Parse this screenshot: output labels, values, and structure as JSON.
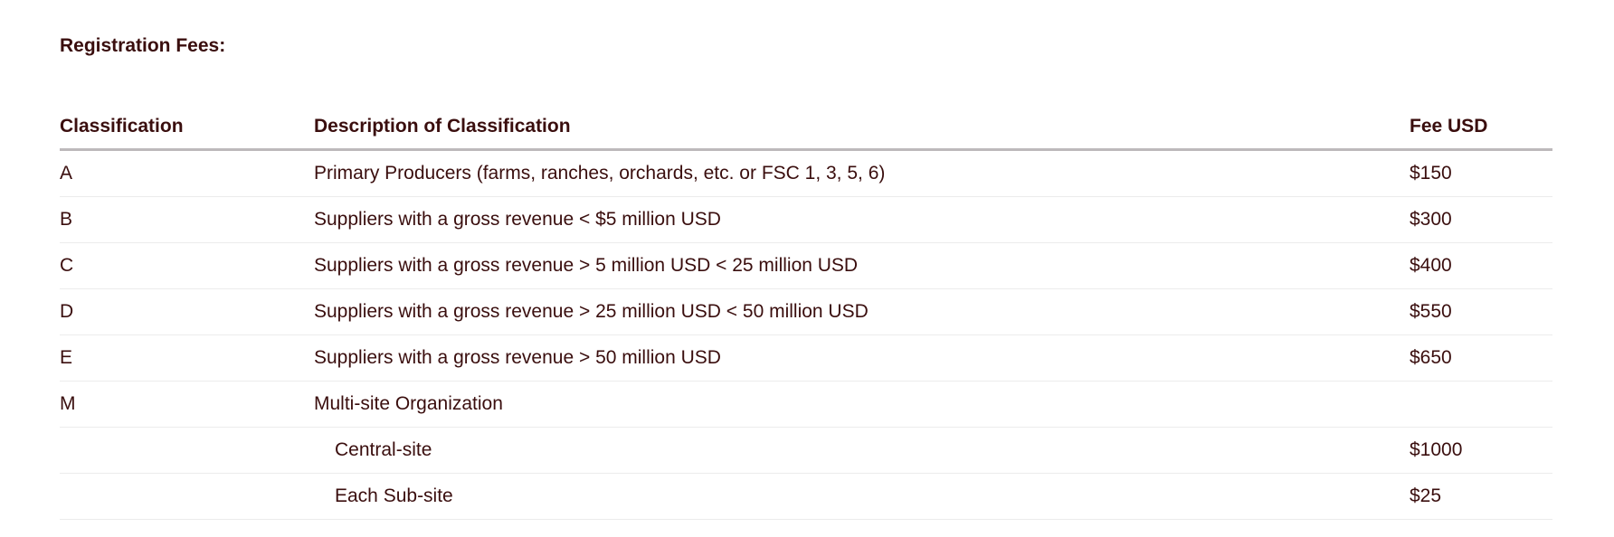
{
  "heading": "Registration Fees:",
  "table": {
    "headers": {
      "classification": "Classification",
      "description": "Description of Classification",
      "fee": "Fee USD"
    },
    "rows": [
      {
        "classification": "A",
        "description": "Primary Producers (farms, ranches, orchards, etc. or FSC 1, 3, 5, 6)",
        "fee": "$150"
      },
      {
        "classification": "B",
        "description": "Suppliers with a gross revenue < $5 million USD",
        "fee": "$300"
      },
      {
        "classification": "C",
        "description": "Suppliers with a gross revenue > 5 million USD < 25 million USD",
        "fee": "$400"
      },
      {
        "classification": "D",
        "description": "Suppliers with a gross revenue > 25 million USD < 50 million USD",
        "fee": "$550"
      },
      {
        "classification": "E",
        "description": "Suppliers with a gross revenue > 50 million USD",
        "fee": "$650"
      },
      {
        "classification": "M",
        "description": "Multi-site Organization",
        "fee": ""
      },
      {
        "classification": "",
        "description": "Central-site",
        "fee": "$1000"
      },
      {
        "classification": "",
        "description": "Each Sub-site",
        "fee": "$25"
      }
    ]
  },
  "colors": {
    "text": "#3a0e0e",
    "header_rule": "#bdb9bb",
    "row_rule": "#ececec"
  }
}
